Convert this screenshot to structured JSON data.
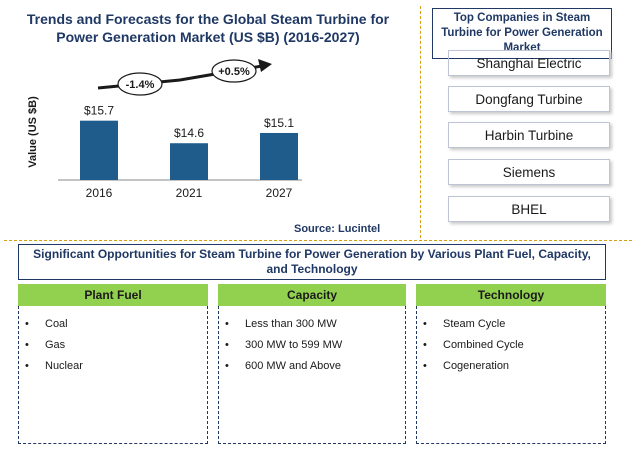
{
  "chart_data": {
    "type": "bar",
    "title": "Trends and Forecasts for the Global Steam Turbine for Power Generation Market (US $B) (2016-2027)",
    "ylabel": "Value (US $B)",
    "categories": [
      "2016",
      "2021",
      "2027"
    ],
    "values": [
      15.7,
      14.6,
      15.1
    ],
    "value_labels": [
      "$15.7",
      "$14.6",
      "$15.1"
    ],
    "growth_annotations": [
      {
        "label": "-1.4%",
        "from": "2016",
        "to": "2021"
      },
      {
        "label": "+0.5%",
        "from": "2021",
        "to": "2027"
      }
    ],
    "bar_color": "#1f5c8b",
    "source": "Source: Lucintel"
  },
  "companies": {
    "title": "Top Companies in Steam Turbine for Power Generation Market",
    "items": [
      "Shanghai Electric",
      "Dongfang Turbine",
      "Harbin Turbine",
      "Siemens",
      "BHEL"
    ]
  },
  "opportunities": {
    "title": "Significant Opportunities for Steam Turbine for Power Generation by Various Plant Fuel, Capacity, and Technology",
    "header_color": "#92d050",
    "columns": [
      {
        "heading": "Plant Fuel",
        "items": [
          "Coal",
          "Gas",
          "Nuclear"
        ]
      },
      {
        "heading": "Capacity",
        "items": [
          "Less than 300 MW",
          "300 MW to 599 MW",
          "600 MW and Above"
        ]
      },
      {
        "heading": "Technology",
        "items": [
          "Steam Cycle",
          "Combined Cycle",
          "Cogeneration"
        ]
      }
    ]
  }
}
